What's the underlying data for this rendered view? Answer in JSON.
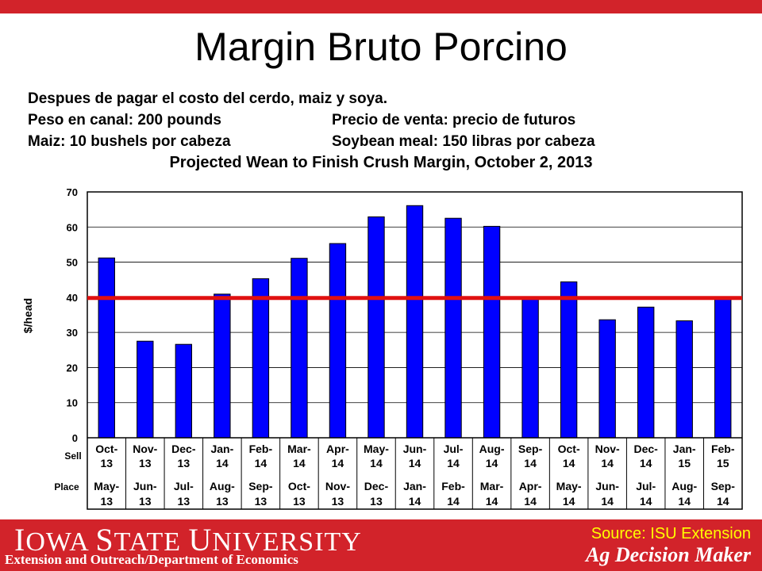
{
  "slide": {
    "title": "Margin Bruto Porcino",
    "line1": "Despues de pagar el costo del cerdo, maiz y soya.",
    "line2a": "Peso en canal:  200 pounds",
    "line2b": "Precio de venta:  precio de futuros",
    "line3a": "Maiz:  10 bushels por cabeza",
    "line3b": "Soybean meal:  150 libras por cabeza"
  },
  "footer": {
    "university_parts": [
      "I",
      "OWA ",
      "S",
      "TATE ",
      "U",
      "NIVERSITY"
    ],
    "department": "Extension and Outreach/Department  of Economics",
    "source": "Source: ISU Extension",
    "brand": "Ag Decision Maker"
  },
  "colors": {
    "bar": "#0000ff",
    "bar_border": "#000000",
    "reference_line": "#e01010",
    "frame_red": "#d2232a",
    "source_text": "#ffff00"
  },
  "chart_data": {
    "type": "bar",
    "title": "Projected Wean to Finish Crush Margin, October 2, 2013",
    "ylabel": "$/head",
    "ylim": [
      0,
      70
    ],
    "yticks": [
      0,
      10,
      20,
      30,
      40,
      50,
      60,
      70
    ],
    "row_labels": [
      "Sell",
      "Place"
    ],
    "sell": [
      [
        "Oct-",
        "13"
      ],
      [
        "Nov-",
        "13"
      ],
      [
        "Dec-",
        "13"
      ],
      [
        "Jan-",
        "14"
      ],
      [
        "Feb-",
        "14"
      ],
      [
        "Mar-",
        "14"
      ],
      [
        "Apr-",
        "14"
      ],
      [
        "May-",
        "14"
      ],
      [
        "Jun-",
        "14"
      ],
      [
        "Jul-",
        "14"
      ],
      [
        "Aug-",
        "14"
      ],
      [
        "Sep-",
        "14"
      ],
      [
        "Oct-",
        "14"
      ],
      [
        "Nov-",
        "14"
      ],
      [
        "Dec-",
        "14"
      ],
      [
        "Jan-",
        "15"
      ],
      [
        "Feb-",
        "15"
      ]
    ],
    "place": [
      [
        "May-",
        "13"
      ],
      [
        "Jun-",
        "13"
      ],
      [
        "Jul-",
        "13"
      ],
      [
        "Aug-",
        "13"
      ],
      [
        "Sep-",
        "13"
      ],
      [
        "Oct-",
        "13"
      ],
      [
        "Nov-",
        "13"
      ],
      [
        "Dec-",
        "13"
      ],
      [
        "Jan-",
        "14"
      ],
      [
        "Feb-",
        "14"
      ],
      [
        "Mar-",
        "14"
      ],
      [
        "Apr-",
        "14"
      ],
      [
        "May-",
        "14"
      ],
      [
        "Jun-",
        "14"
      ],
      [
        "Jul-",
        "14"
      ],
      [
        "Aug-",
        "14"
      ],
      [
        "Sep-",
        "14"
      ]
    ],
    "values": [
      51.2,
      27.5,
      26.6,
      40.9,
      45.3,
      51.1,
      55.3,
      62.9,
      66.1,
      62.5,
      60.2,
      39.6,
      44.4,
      33.6,
      37.2,
      33.3,
      39.5
    ],
    "reference_line": 39.8,
    "grid": "horizontal"
  }
}
